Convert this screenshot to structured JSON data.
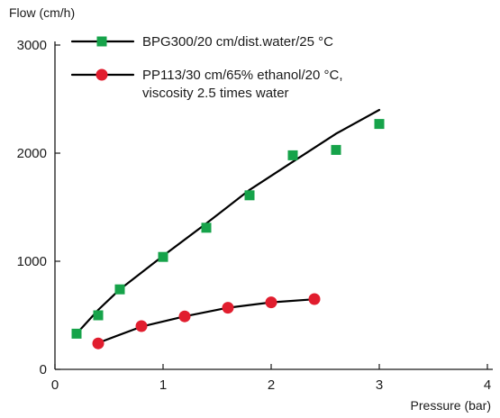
{
  "chart_data": {
    "type": "scatter",
    "xlabel": "Pressure (bar)",
    "ylabel": "Flow (cm/h)",
    "xlim": [
      0,
      4
    ],
    "ylim": [
      0,
      3000
    ],
    "xticks": [
      0,
      1,
      2,
      3,
      4
    ],
    "yticks": [
      0,
      1000,
      2000,
      3000
    ],
    "grid": false,
    "legend_position": "top-left",
    "series": [
      {
        "name": "BPG300/20 cm/dist.water/25 °C",
        "marker": "square",
        "color": "#16a34a",
        "points": [
          [
            0.2,
            330
          ],
          [
            0.4,
            500
          ],
          [
            0.6,
            740
          ],
          [
            1.0,
            1040
          ],
          [
            1.4,
            1310
          ],
          [
            1.8,
            1610
          ],
          [
            2.2,
            1980
          ],
          [
            2.6,
            2030
          ],
          [
            3.0,
            2270
          ]
        ],
        "line": [
          [
            0.2,
            330
          ],
          [
            0.4,
            550
          ],
          [
            0.6,
            740
          ],
          [
            1.0,
            1050
          ],
          [
            1.4,
            1350
          ],
          [
            1.8,
            1660
          ],
          [
            2.2,
            1920
          ],
          [
            2.6,
            2180
          ],
          [
            3.0,
            2400
          ]
        ]
      },
      {
        "name": "PP113/30 cm/65% ethanol/20 °C,",
        "name_line2": "viscosity 2.5 times water",
        "marker": "circle",
        "color": "#e11d2e",
        "points": [
          [
            0.4,
            240
          ],
          [
            0.8,
            400
          ],
          [
            1.2,
            490
          ],
          [
            1.6,
            570
          ],
          [
            2.0,
            620
          ],
          [
            2.4,
            650
          ]
        ],
        "line": [
          [
            0.4,
            245
          ],
          [
            0.8,
            395
          ],
          [
            1.2,
            490
          ],
          [
            1.6,
            570
          ],
          [
            2.0,
            620
          ],
          [
            2.4,
            648
          ]
        ]
      }
    ]
  }
}
